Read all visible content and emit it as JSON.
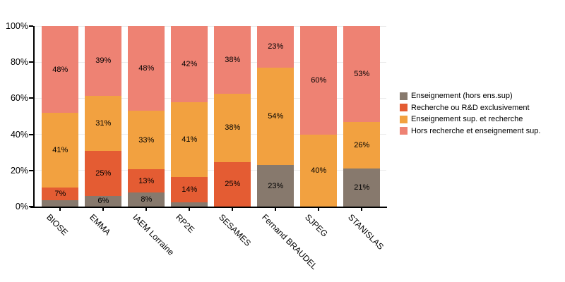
{
  "chart_data": {
    "type": "bar",
    "variant": "stacked-percent",
    "title": "",
    "xlabel": "",
    "ylabel": "",
    "ylim": [
      0,
      100
    ],
    "grid": true,
    "legend_position": "right",
    "y_ticks": [
      {
        "value": 0,
        "label": "0%"
      },
      {
        "value": 20,
        "label": "20%"
      },
      {
        "value": 40,
        "label": "40%"
      },
      {
        "value": 60,
        "label": "60%"
      },
      {
        "value": 80,
        "label": "80%"
      },
      {
        "value": 100,
        "label": "100%"
      }
    ],
    "categories": [
      "BIOSE",
      "EMMA",
      "IAEM Lorraine",
      "RP2E",
      "SESAMES",
      "Fernand BRAUDEL",
      "SJPEG",
      "STANISLAS"
    ],
    "series": [
      {
        "name": "Enseignement (hors ens.sup)",
        "color": "#87796d",
        "values": [
          3.5,
          6,
          8,
          2.5,
          0,
          23,
          0,
          21
        ],
        "labels": [
          "",
          "6%",
          "8%",
          "",
          "",
          "23%",
          "",
          "21%"
        ]
      },
      {
        "name": "Recherche ou R&D exclusivement",
        "color": "#e45c33",
        "values": [
          7,
          25,
          13,
          14,
          25,
          0,
          0,
          0
        ],
        "labels": [
          "7%",
          "25%",
          "13%",
          "14%",
          "25%",
          "",
          "",
          ""
        ]
      },
      {
        "name": "Enseignement sup. et recherche",
        "color": "#f2a140",
        "values": [
          41,
          31,
          33,
          41,
          38,
          54,
          40,
          26
        ],
        "labels": [
          "41%",
          "31%",
          "33%",
          "41%",
          "38%",
          "54%",
          "40%",
          "26%"
        ]
      },
      {
        "name": "Hors recherche et enseignement sup.",
        "color": "#ee8273",
        "values": [
          48,
          39,
          48,
          42,
          38,
          23,
          60,
          53
        ],
        "labels": [
          "48%",
          "39%",
          "48%",
          "42%",
          "38%",
          "23%",
          "60%",
          "53%"
        ]
      }
    ],
    "colors": {
      "axis": "#000000",
      "grid": "#ebebeb",
      "value_label": "#000000"
    }
  }
}
